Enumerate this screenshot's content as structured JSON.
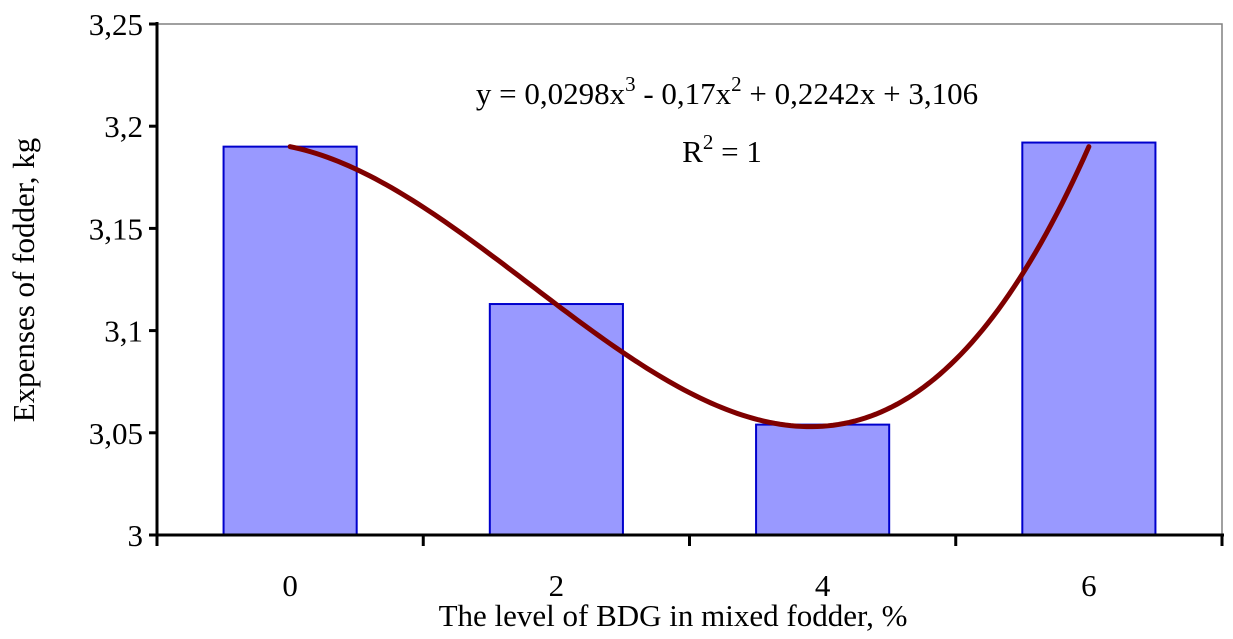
{
  "chart_data": {
    "type": "bar",
    "categories": [
      "0",
      "2",
      "4",
      "6"
    ],
    "values": [
      3.19,
      3.113,
      3.054,
      3.192
    ],
    "ylim": [
      3,
      3.25
    ],
    "yticks": [
      3,
      3.05,
      3.1,
      3.15,
      3.2,
      3.25
    ],
    "ytick_labels": [
      "3",
      "3,05",
      "3,1",
      "3,15",
      "3,2",
      "3,25"
    ],
    "xlabel": "The level of BDG in mixed fodder, %",
    "ylabel": "Expenses of fodder, kg",
    "trendline": {
      "type": "polynomial",
      "order": 3,
      "coefficients": [
        0.0298,
        -0.17,
        0.2242,
        3.106
      ],
      "equation_text": {
        "lead": "y = 0,0298x",
        "exp1": "3",
        "mid": " - 0,17x",
        "exp2": "2",
        "tail": " + 0,2242x + 3,106"
      },
      "r2_text": {
        "base": "R",
        "exp": "2",
        "tail": " = 1"
      },
      "color": "#7f0000"
    },
    "bar_fill": "#9999ff",
    "bar_stroke": "#0000cc",
    "grid": false,
    "legend": "none"
  }
}
